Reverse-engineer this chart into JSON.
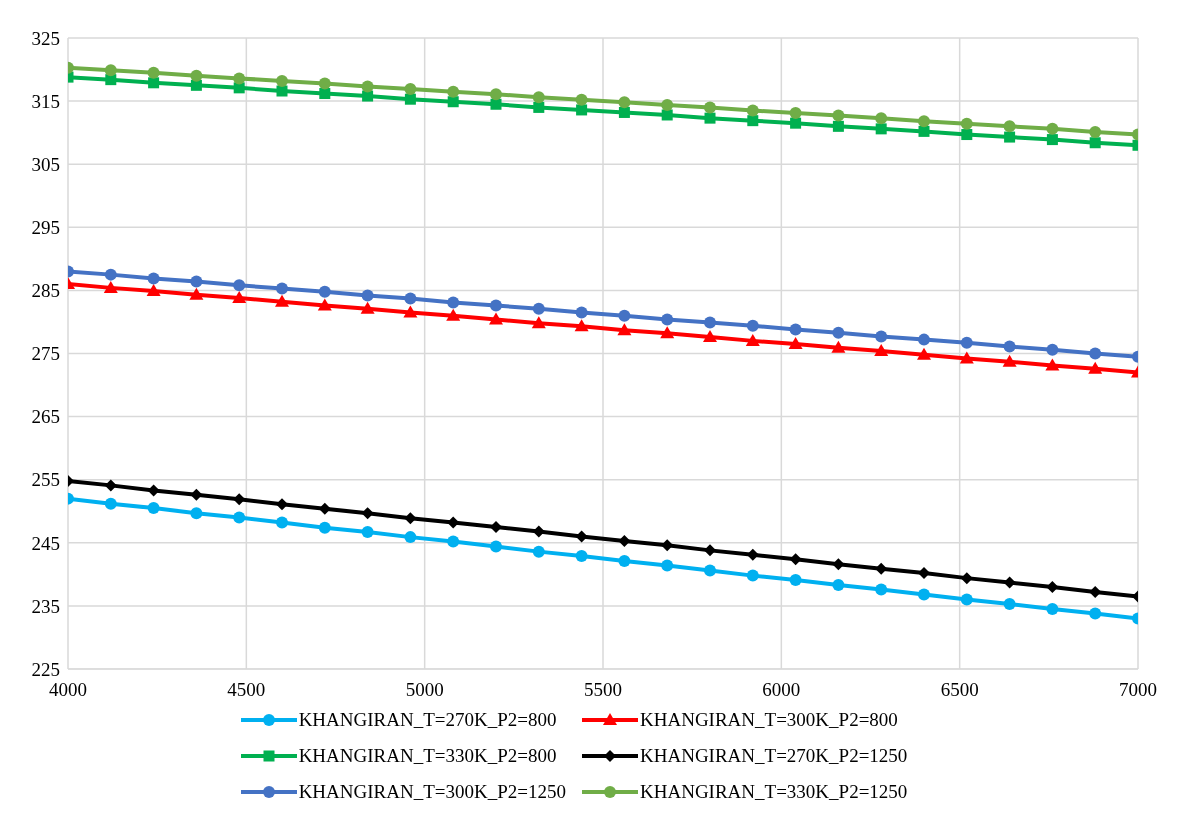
{
  "chart_data": {
    "type": "line",
    "x": [
      4000,
      4120,
      4240,
      4360,
      4480,
      4600,
      4720,
      4840,
      4960,
      5080,
      5200,
      5320,
      5440,
      5560,
      5680,
      5800,
      5920,
      6040,
      6160,
      6280,
      6400,
      6520,
      6640,
      6760,
      6880,
      7000
    ],
    "series": [
      {
        "name": "KHANGIRAN_T=270K_P2=800",
        "color": "#00b0f0",
        "marker": "circle",
        "values": [
          252,
          251.2,
          250.5,
          249.7,
          249.0,
          248.2,
          247.4,
          246.7,
          245.9,
          245.2,
          244.4,
          243.6,
          242.9,
          242.1,
          241.4,
          240.6,
          239.8,
          239.1,
          238.3,
          237.6,
          236.8,
          236.0,
          235.3,
          234.5,
          233.8,
          233.0
        ]
      },
      {
        "name": "KHANGIRAN_T=300K_P2=800",
        "color": "#ff0000",
        "marker": "triangle",
        "values": [
          286,
          285.4,
          284.9,
          284.3,
          283.8,
          283.2,
          282.6,
          282.1,
          281.5,
          281.0,
          280.4,
          279.8,
          279.3,
          278.7,
          278.2,
          277.6,
          277.0,
          276.5,
          275.9,
          275.4,
          274.8,
          274.2,
          273.7,
          273.1,
          272.6,
          272.0
        ]
      },
      {
        "name": "KHANGIRAN_T=330K_P2=800",
        "color": "#00b050",
        "marker": "square",
        "values": [
          318.8,
          318.4,
          317.9,
          317.5,
          317.1,
          316.6,
          316.2,
          315.8,
          315.3,
          314.9,
          314.5,
          314.0,
          313.6,
          313.2,
          312.8,
          312.3,
          311.9,
          311.5,
          311.0,
          310.6,
          310.2,
          309.7,
          309.3,
          308.9,
          308.4,
          308.0
        ]
      },
      {
        "name": "KHANGIRAN_T=270K_P2=1250",
        "color": "#000000",
        "marker": "diamond",
        "values": [
          254.8,
          254.1,
          253.3,
          252.6,
          251.9,
          251.1,
          250.4,
          249.7,
          248.9,
          248.2,
          247.5,
          246.8,
          246.0,
          245.3,
          244.6,
          243.8,
          243.1,
          242.4,
          241.6,
          240.9,
          240.2,
          239.4,
          238.7,
          238.0,
          237.2,
          236.5
        ]
      },
      {
        "name": "KHANGIRAN_T=300K_P2=1250",
        "color": "#4472c4",
        "marker": "circle",
        "values": [
          288,
          287.5,
          286.9,
          286.4,
          285.8,
          285.3,
          284.8,
          284.2,
          283.7,
          283.1,
          282.6,
          282.1,
          281.5,
          281.0,
          280.4,
          279.9,
          279.4,
          278.8,
          278.3,
          277.7,
          277.2,
          276.7,
          276.1,
          275.6,
          275.0,
          274.5
        ]
      },
      {
        "name": "KHANGIRAN_T=330K_P2=1250",
        "color": "#70ad47",
        "marker": "circle",
        "values": [
          320.3,
          319.9,
          319.5,
          319.0,
          318.6,
          318.2,
          317.8,
          317.3,
          316.9,
          316.5,
          316.1,
          315.6,
          315.2,
          314.8,
          314.4,
          314.0,
          313.5,
          313.1,
          312.7,
          312.3,
          311.8,
          311.4,
          311.0,
          310.6,
          310.1,
          309.7
        ]
      }
    ],
    "xlim": [
      4000,
      7000
    ],
    "xticks": [
      4000,
      4500,
      5000,
      5500,
      6000,
      6500,
      7000
    ],
    "ylim": [
      225,
      325
    ],
    "yticks": [
      225,
      235,
      245,
      255,
      265,
      275,
      285,
      295,
      305,
      315,
      325
    ],
    "grid": true,
    "legend": "bottom",
    "line_style": "solid"
  }
}
